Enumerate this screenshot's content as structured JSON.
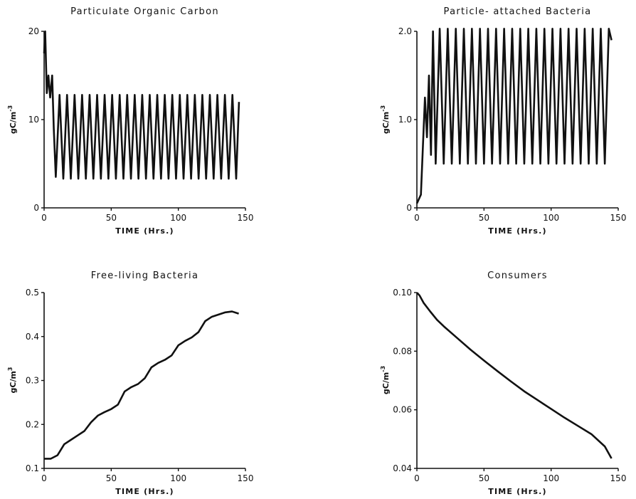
{
  "chart_data": [
    {
      "type": "line",
      "title": "Particulate Organic Carbon",
      "xlabel": "TIME (Hrs.)",
      "ylabel": "gC/m-3",
      "xlim": [
        0,
        150
      ],
      "ylim": [
        0,
        20
      ],
      "xticks": [
        "0",
        "50",
        "100",
        "150"
      ],
      "yticks": [
        "0",
        "10",
        "20"
      ],
      "grid": false,
      "series": [
        {
          "x": [
            0,
            0.8,
            2,
            3.2,
            4.5,
            6,
            7.2,
            8.7,
            11.5,
            14.3,
            17.1,
            19.9,
            22.7,
            25.5,
            28.3,
            31.1,
            33.9,
            36.7,
            39.5,
            42.3,
            45.1,
            47.9,
            50.7,
            53.5,
            56.3,
            59.1,
            61.9,
            64.7,
            67.5,
            70.3,
            73.1,
            75.9,
            78.7,
            81.5,
            84.3,
            87.1,
            89.9,
            92.7,
            95.5,
            98.3,
            101.1,
            103.9,
            106.7,
            109.5,
            112.3,
            115.1,
            117.9,
            120.7,
            123.5,
            126.3,
            129.1,
            131.9,
            134.7,
            137.5,
            140.3,
            143.1,
            145.2
          ],
          "y": [
            17.5,
            20,
            13,
            15,
            12.5,
            15,
            9,
            3.5,
            12.8,
            3.3,
            12.8,
            3.3,
            12.8,
            3.3,
            12.8,
            3.3,
            12.8,
            3.3,
            12.8,
            3.3,
            12.8,
            3.3,
            12.8,
            3.3,
            12.8,
            3.3,
            12.8,
            3.3,
            12.8,
            3.3,
            12.8,
            3.3,
            12.8,
            3.3,
            12.8,
            3.3,
            12.8,
            3.3,
            12.8,
            3.3,
            12.8,
            3.3,
            12.8,
            3.3,
            12.8,
            3.3,
            12.8,
            3.3,
            12.8,
            3.3,
            12.8,
            3.3,
            12.8,
            3.3,
            12.8,
            3.3,
            12
          ]
        }
      ]
    },
    {
      "type": "line",
      "title": "Particle- attached Bacteria",
      "xlabel": "TIME (Hrs.)",
      "ylabel": "gC/m-3",
      "xlim": [
        0,
        150
      ],
      "ylim": [
        0,
        2.0
      ],
      "xticks": [
        "0",
        "50",
        "100",
        "150"
      ],
      "yticks": [
        "0",
        "1.0",
        "2.0"
      ],
      "grid": false,
      "series": [
        {
          "x": [
            0,
            3,
            4.5,
            6,
            7.5,
            9,
            10.5,
            12,
            14,
            17,
            20,
            23,
            26,
            29,
            32,
            35,
            38,
            41,
            44,
            47,
            50,
            53,
            56,
            59,
            62,
            65,
            68,
            71,
            74,
            77,
            80,
            83,
            86,
            89,
            92,
            95,
            98,
            101,
            104,
            107,
            110,
            113,
            116,
            119,
            122,
            125,
            128,
            131,
            134,
            137,
            140,
            143,
            145
          ],
          "y": [
            0.05,
            0.15,
            0.7,
            1.25,
            0.8,
            1.5,
            0.6,
            2.0,
            0.5,
            2.03,
            0.5,
            2.03,
            0.5,
            2.03,
            0.5,
            2.03,
            0.5,
            2.03,
            0.5,
            2.03,
            0.5,
            2.03,
            0.5,
            2.03,
            0.5,
            2.03,
            0.5,
            2.03,
            0.5,
            2.03,
            0.5,
            2.03,
            0.5,
            2.03,
            0.5,
            2.03,
            0.5,
            2.03,
            0.5,
            2.03,
            0.5,
            2.03,
            0.5,
            2.03,
            0.5,
            2.03,
            0.5,
            2.03,
            0.5,
            2.03,
            0.5,
            2.03,
            1.9
          ]
        }
      ]
    },
    {
      "type": "line",
      "title": "Free-living Bacteria",
      "xlabel": "TIME (Hrs.)",
      "ylabel": "gC/m3",
      "xlim": [
        0,
        150
      ],
      "ylim": [
        0.1,
        0.5
      ],
      "xticks": [
        "0",
        "50",
        "100",
        "150"
      ],
      "yticks": [
        "0.1",
        "0.2",
        "0.3",
        "0.4",
        "0.5"
      ],
      "grid": false,
      "series": [
        {
          "x": [
            0,
            5,
            10,
            15,
            20,
            25,
            30,
            35,
            40,
            45,
            50,
            55,
            60,
            65,
            70,
            75,
            80,
            85,
            90,
            95,
            100,
            105,
            110,
            115,
            120,
            125,
            130,
            135,
            140,
            145
          ],
          "y": [
            0.122,
            0.122,
            0.13,
            0.155,
            0.165,
            0.175,
            0.185,
            0.205,
            0.22,
            0.228,
            0.235,
            0.245,
            0.275,
            0.285,
            0.292,
            0.305,
            0.33,
            0.34,
            0.347,
            0.357,
            0.38,
            0.39,
            0.398,
            0.41,
            0.435,
            0.445,
            0.45,
            0.455,
            0.457,
            0.452
          ]
        }
      ]
    },
    {
      "type": "line",
      "title": "Consumers",
      "xlabel": "TIME (Hrs.)",
      "ylabel": "gC/m-3",
      "xlim": [
        0,
        150
      ],
      "ylim": [
        0.04,
        0.1
      ],
      "xticks": [
        "0",
        "50",
        "100",
        "150"
      ],
      "yticks": [
        "0.04",
        "0.06",
        "0.08",
        "0.10"
      ],
      "grid": false,
      "series": [
        {
          "x": [
            0,
            2,
            5,
            10,
            15,
            20,
            30,
            40,
            50,
            60,
            70,
            80,
            90,
            100,
            110,
            120,
            130,
            140,
            145
          ],
          "y": [
            0.1,
            0.099,
            0.0965,
            0.0935,
            0.0907,
            0.0885,
            0.0845,
            0.0805,
            0.0768,
            0.0732,
            0.0697,
            0.0663,
            0.0633,
            0.0603,
            0.0573,
            0.0545,
            0.0517,
            0.0475,
            0.0434
          ]
        }
      ]
    }
  ]
}
